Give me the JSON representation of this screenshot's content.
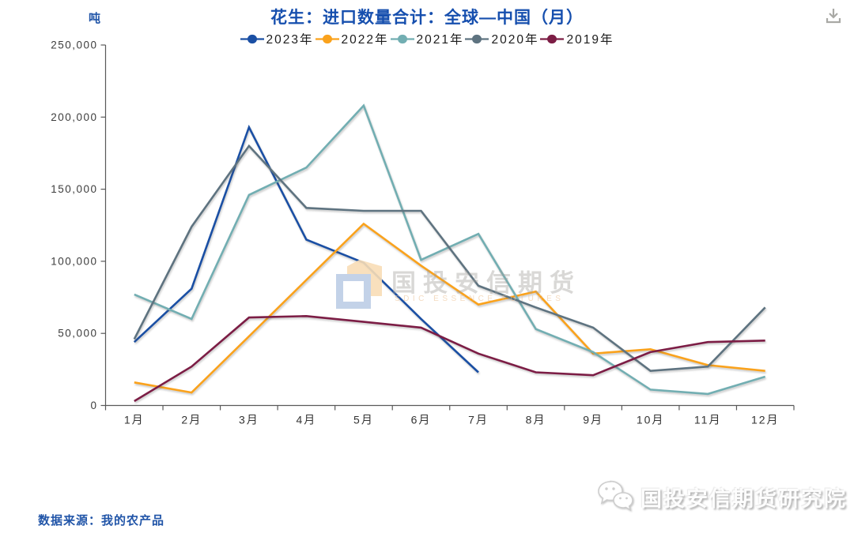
{
  "header": {
    "unit_label": "吨",
    "title": "花生：进口数量合计：全球—中国（月）",
    "title_color": "#164fae",
    "download_icon": "download-icon",
    "download_icon_color": "#a9a9a5"
  },
  "chart_data": {
    "type": "line",
    "title": "花生：进口数量合计：全球—中国（月）",
    "ylabel": "吨",
    "xlabel": "",
    "ylim": [
      0,
      250000
    ],
    "ytick_step": 50000,
    "ytick_labels": [
      "0",
      "50,000",
      "100,000",
      "150,000",
      "200,000",
      "250,000"
    ],
    "categories": [
      "1月",
      "2月",
      "3月",
      "4月",
      "5月",
      "6月",
      "7月",
      "8月",
      "9月",
      "10月",
      "11月",
      "12月"
    ],
    "grid": false,
    "legend_position": "top-center",
    "axis_color": "#595959",
    "series": [
      {
        "name": "2023年",
        "color": "#1a4fa4",
        "values": [
          44000,
          81000,
          193000,
          115000,
          99000,
          60000,
          23000,
          null,
          null,
          null,
          null,
          null
        ]
      },
      {
        "name": "2022年",
        "color": "#faa21c",
        "values": [
          16000,
          9000,
          48000,
          87000,
          126000,
          97000,
          70000,
          79000,
          36000,
          39000,
          28000,
          24000
        ]
      },
      {
        "name": "2021年",
        "color": "#72aeb2",
        "values": [
          77000,
          60000,
          146000,
          165000,
          208000,
          101000,
          119000,
          53000,
          37000,
          11000,
          8000,
          20000
        ]
      },
      {
        "name": "2020年",
        "color": "#5e7380",
        "values": [
          46000,
          124000,
          180000,
          137000,
          135000,
          135000,
          83000,
          68000,
          54000,
          24000,
          27000,
          68000
        ]
      },
      {
        "name": "2019年",
        "color": "#7c1d45",
        "values": [
          3000,
          27000,
          61000,
          62000,
          58000,
          54000,
          36000,
          23000,
          21000,
          37000,
          44000,
          45000
        ]
      }
    ]
  },
  "watermark_center": {
    "cjk": "国投安信期货",
    "latin": "SDIC ESSENCE FUTURES",
    "logo_icon": "sdic-logo-mark"
  },
  "watermark_corner": {
    "text": "国投安信期货研究院",
    "icon": "wechat-icon"
  },
  "footer": {
    "source": "数据来源：我的农产品",
    "color": "#2155a8"
  }
}
